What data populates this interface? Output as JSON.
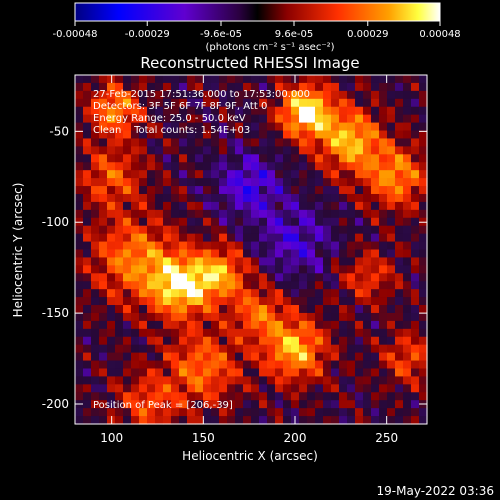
{
  "colorbar": {
    "tick_labels": [
      "-0.00048",
      "-0.00029",
      "-9.6e-05",
      "9.6e-05",
      "0.00029",
      "0.00048"
    ],
    "tick_values": [
      -0.00048,
      -0.00029,
      -9.6e-05,
      9.6e-05,
      0.00029,
      0.00048
    ],
    "range": [
      -0.00048,
      0.00048
    ],
    "units_label": "(photons cm⁻² s⁻¹ asec⁻²)"
  },
  "annotations": {
    "time": "27-Feb-2015 17:51:36.000 to 17:53:00.000",
    "detectors": "Detectors: 3F 5F 6F 7F 8F 9F, Att 0",
    "energy": "Energy Range: 25.0 - 50.0 keV",
    "clean": "Clean    Total counts: 1.54E+03",
    "peak": "Position of Peak = [206,-39]"
  },
  "footer_timestamp": "19-May-2022 03:36",
  "chart_data": {
    "type": "heatmap",
    "title": "Reconstructed RHESSI Image",
    "xlabel": "Heliocentric X (arcsec)",
    "ylabel": "Heliocentric Y (arcsec)",
    "xlim": [
      80,
      272
    ],
    "ylim": [
      -211,
      -19
    ],
    "x_ticks": [
      100,
      150,
      200,
      250
    ],
    "y_ticks": [
      -50,
      -100,
      -150,
      -200
    ],
    "peak": [
      206,
      -39
    ],
    "colormap": [
      "#000000",
      "#0000ff",
      "#6a1fb0",
      "#a00000",
      "#ff3000",
      "#ffa000",
      "#ffff60",
      "#ffffff"
    ],
    "value_range": [
      -0.00048,
      0.00048
    ],
    "blobs": [
      {
        "x": 102,
        "y": -38,
        "sigma": 10,
        "amp": 0.0003
      },
      {
        "x": 100,
        "y": -75,
        "sigma": 12,
        "amp": 0.00022
      },
      {
        "x": 112,
        "y": -120,
        "sigma": 16,
        "amp": 0.00028
      },
      {
        "x": 138,
        "y": -135,
        "sigma": 12,
        "amp": 0.00042
      },
      {
        "x": 160,
        "y": -128,
        "sigma": 10,
        "amp": 0.0003
      },
      {
        "x": 180,
        "y": -150,
        "sigma": 10,
        "amp": 0.00024
      },
      {
        "x": 200,
        "y": -170,
        "sigma": 12,
        "amp": 0.00036
      },
      {
        "x": 150,
        "y": -180,
        "sigma": 14,
        "amp": 0.00026
      },
      {
        "x": 206,
        "y": -39,
        "sigma": 10,
        "amp": 0.00046
      },
      {
        "x": 230,
        "y": -55,
        "sigma": 12,
        "amp": 0.00036
      },
      {
        "x": 255,
        "y": -75,
        "sigma": 12,
        "amp": 0.0003
      },
      {
        "x": 240,
        "y": -130,
        "sigma": 10,
        "amp": 0.00018
      },
      {
        "x": 262,
        "y": -175,
        "sigma": 10,
        "amp": 0.0002
      },
      {
        "x": 120,
        "y": -200,
        "sigma": 12,
        "amp": 0.0002
      },
      {
        "x": 175,
        "y": -80,
        "sigma": 12,
        "amp": -0.00022
      },
      {
        "x": 200,
        "y": -110,
        "sigma": 14,
        "amp": -0.00018
      }
    ]
  }
}
